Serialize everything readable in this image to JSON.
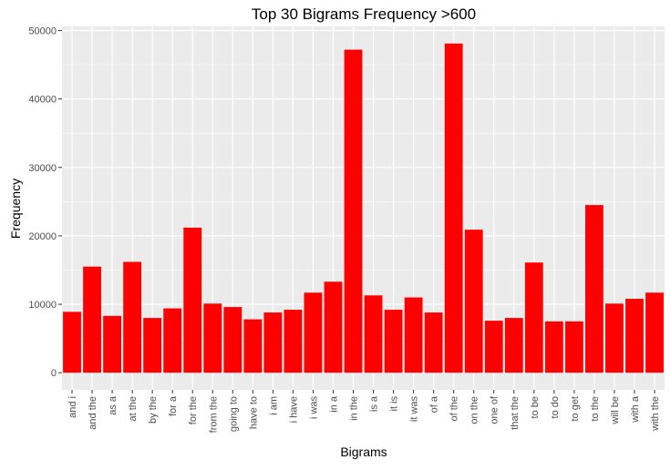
{
  "chart_data": {
    "type": "bar",
    "title": "Top 30 Bigrams Frequency >600",
    "xlabel": "Bigrams",
    "ylabel": "Frequency",
    "ylim": [
      -2500,
      50600
    ],
    "yticks": [
      0,
      10000,
      20000,
      30000,
      40000,
      50000
    ],
    "grid": true,
    "legend": "none",
    "colors": {
      "bar": "#ff0000",
      "panel": "#ebebeb",
      "grid": "#ffffff"
    },
    "categories": [
      "and i",
      "and the",
      "as a",
      "at the",
      "by the",
      "for a",
      "for the",
      "from the",
      "going to",
      "have to",
      "i am",
      "i have",
      "i was",
      "in a",
      "in the",
      "is a",
      "it is",
      "it was",
      "of a",
      "of the",
      "on the",
      "one of",
      "that the",
      "to be",
      "to do",
      "to get",
      "to the",
      "will be",
      "with a",
      "with the"
    ],
    "values": [
      8900,
      15500,
      8300,
      16200,
      8000,
      9400,
      21200,
      10100,
      9600,
      7800,
      8800,
      9200,
      11700,
      13300,
      47200,
      11300,
      9200,
      11000,
      8800,
      48100,
      20900,
      7600,
      8000,
      16100,
      7500,
      7500,
      24500,
      10100,
      10800,
      11700
    ]
  }
}
